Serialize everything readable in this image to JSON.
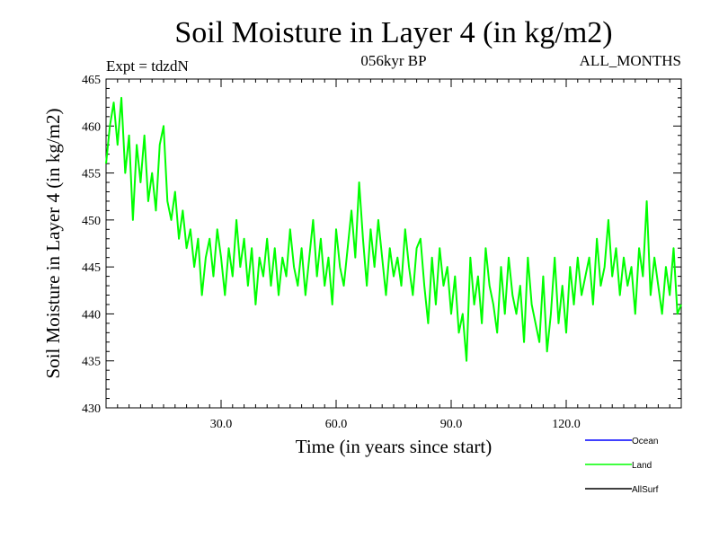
{
  "chart_data": {
    "type": "line",
    "title": "Soil Moisture in Layer 4 (in kg/m2)",
    "subtitle_left": "Expt = tdzdN",
    "subtitle_center": "056kyr BP",
    "subtitle_right": "ALL_MONTHS",
    "xlabel": "Time (in years since start)",
    "ylabel": "Soil Moisture in Layer 4 (in kg/m2)",
    "xlim": [
      0,
      150
    ],
    "ylim": [
      430,
      465
    ],
    "x_ticks": [
      30,
      60,
      90,
      120
    ],
    "x_tick_labels": [
      "30.0",
      "60.0",
      "90.0",
      "120.0"
    ],
    "y_ticks": [
      430,
      435,
      440,
      445,
      450,
      455,
      460,
      465
    ],
    "y_tick_labels": [
      "430",
      "435",
      "440",
      "445",
      "450",
      "455",
      "460",
      "465"
    ],
    "legend_position": "bottom-right",
    "series": [
      {
        "name": "Ocean",
        "color": "#0000ff",
        "x": [],
        "values": []
      },
      {
        "name": "Land",
        "color": "#00ff00",
        "x": [
          0,
          1,
          2,
          3,
          4,
          5,
          6,
          7,
          8,
          9,
          10,
          11,
          12,
          13,
          14,
          15,
          16,
          17,
          18,
          19,
          20,
          21,
          22,
          23,
          24,
          25,
          26,
          27,
          28,
          29,
          30,
          31,
          32,
          33,
          34,
          35,
          36,
          37,
          38,
          39,
          40,
          41,
          42,
          43,
          44,
          45,
          46,
          47,
          48,
          49,
          50,
          51,
          52,
          53,
          54,
          55,
          56,
          57,
          58,
          59,
          60,
          61,
          62,
          63,
          64,
          65,
          66,
          67,
          68,
          69,
          70,
          71,
          72,
          73,
          74,
          75,
          76,
          77,
          78,
          79,
          80,
          81,
          82,
          83,
          84,
          85,
          86,
          87,
          88,
          89,
          90,
          91,
          92,
          93,
          94,
          95,
          96,
          97,
          98,
          99,
          100,
          101,
          102,
          103,
          104,
          105,
          106,
          107,
          108,
          109,
          110,
          111,
          112,
          113,
          114,
          115,
          116,
          117,
          118,
          119,
          120,
          121,
          122,
          123,
          124,
          125,
          126,
          127,
          128,
          129,
          130,
          131,
          132,
          133,
          134,
          135,
          136,
          137,
          138,
          139,
          140,
          141,
          142,
          143,
          144,
          145,
          146,
          147,
          148,
          149,
          150
        ],
        "values": [
          456,
          460,
          462.5,
          458,
          463,
          455,
          459,
          450,
          458,
          454,
          459,
          452,
          455,
          451,
          458,
          460,
          452,
          450,
          453,
          448,
          451,
          447,
          449,
          445,
          448,
          442,
          446,
          448,
          444,
          449,
          446,
          442,
          447,
          444,
          450,
          445,
          448,
          443,
          447,
          441,
          446,
          444,
          448,
          443,
          447,
          442,
          446,
          444,
          449,
          445,
          443,
          447,
          442,
          446,
          450,
          444,
          448,
          443,
          446,
          441,
          449,
          445,
          443,
          447,
          451,
          446,
          454,
          448,
          443,
          449,
          445,
          450,
          446,
          442,
          447,
          444,
          446,
          443,
          449,
          445,
          442,
          447,
          448,
          443,
          439,
          446,
          441,
          447,
          443,
          445,
          440,
          444,
          438,
          440,
          435,
          446,
          441,
          444,
          439,
          447,
          443,
          441,
          438,
          445,
          440,
          446,
          442,
          440,
          443,
          437,
          446,
          441,
          439,
          437,
          444,
          436,
          440,
          446,
          439,
          443,
          438,
          445,
          441,
          446,
          442,
          444,
          446,
          441,
          448,
          443,
          445,
          450,
          444,
          447,
          442,
          446,
          443,
          445,
          440,
          447,
          444,
          452,
          442,
          446,
          443,
          440,
          445,
          442,
          447,
          440,
          441
        ]
      },
      {
        "name": "AllSurf",
        "color": "#000000",
        "x": [],
        "values": []
      }
    ]
  }
}
